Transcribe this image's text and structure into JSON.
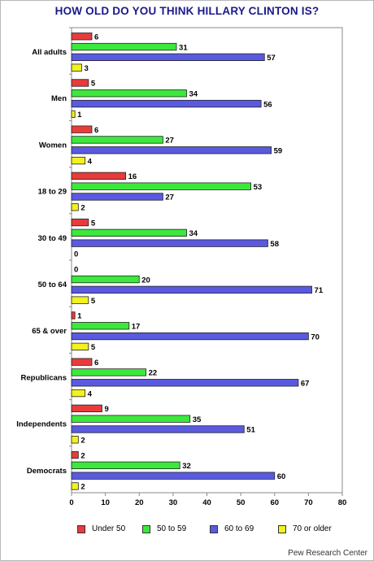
{
  "chart_data": {
    "type": "bar",
    "orientation": "horizontal",
    "title": "HOW OLD DO YOU THINK HILLARY CLINTON IS?",
    "categories": [
      "All adults",
      "Men",
      "Women",
      "18 to 29",
      "30 to 49",
      "50 to 64",
      "65 & over",
      "Republicans",
      "Independents",
      "Democrats"
    ],
    "series": [
      {
        "name": "Under 50",
        "color": "#e83b3b",
        "values": [
          6,
          5,
          6,
          16,
          5,
          0,
          1,
          6,
          9,
          2
        ]
      },
      {
        "name": "50 to 59",
        "color": "#3ce83c",
        "values": [
          31,
          34,
          27,
          53,
          34,
          20,
          17,
          22,
          35,
          32
        ]
      },
      {
        "name": "60 to 69",
        "color": "#5a5ae0",
        "values": [
          57,
          56,
          59,
          27,
          58,
          71,
          70,
          67,
          51,
          60
        ]
      },
      {
        "name": "70 or older",
        "color": "#f2f21e",
        "values": [
          3,
          1,
          4,
          2,
          0,
          5,
          5,
          4,
          2,
          2
        ]
      }
    ],
    "xlim": [
      0,
      80
    ],
    "xticks": [
      0,
      10,
      20,
      30,
      40,
      50,
      60,
      70,
      80
    ],
    "grid": false,
    "legend_position": "bottom"
  },
  "source": "Pew Research Center"
}
